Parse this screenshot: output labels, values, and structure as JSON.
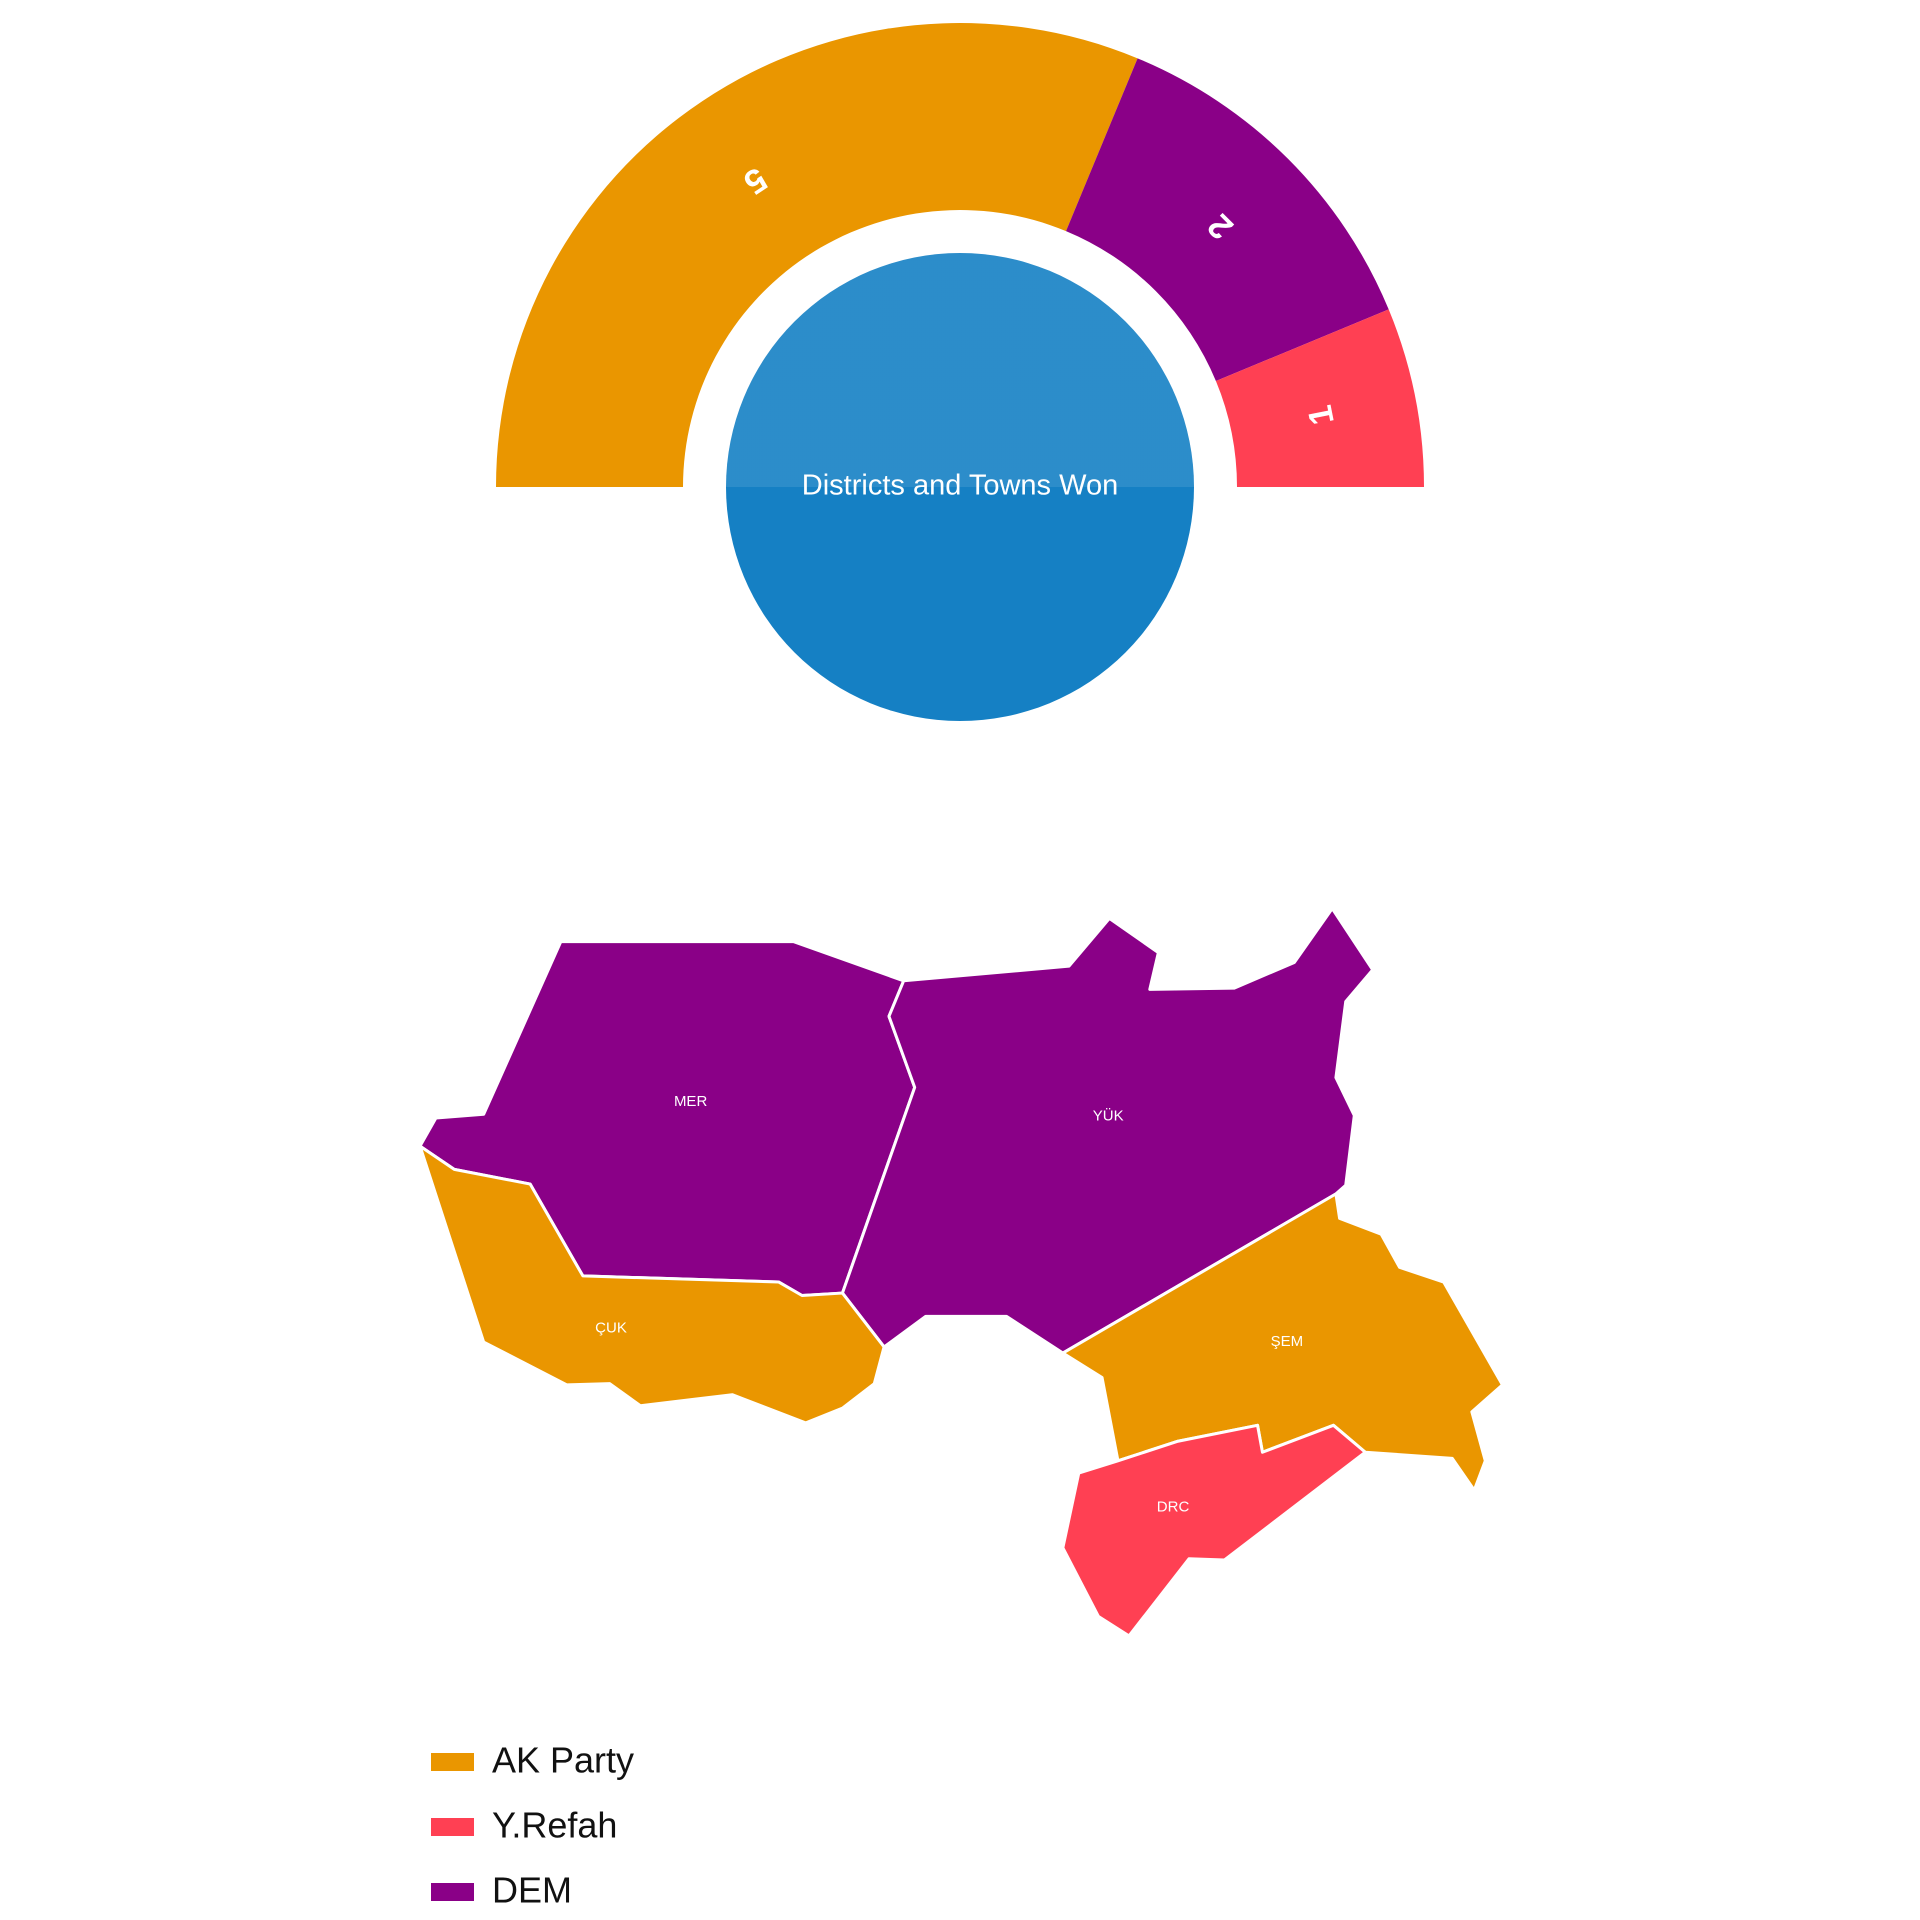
{
  "chart_data": {
    "type": "pie",
    "title": "Districts and Towns Won",
    "values": [
      5,
      2,
      1
    ],
    "colors": [
      "#ea9600",
      "#8a0087",
      "#ff4053"
    ],
    "center_color": "#1580c4"
  },
  "map": {
    "regions": [
      {
        "label": "MER",
        "color": "#8a0087"
      },
      {
        "label": "YÜK",
        "color": "#8a0087"
      },
      {
        "label": "ÇUK",
        "color": "#ea9600"
      },
      {
        "label": "ŞEM",
        "color": "#ea9600"
      },
      {
        "label": "DRC",
        "color": "#ff4053"
      }
    ]
  },
  "legend": {
    "items": [
      {
        "name": "AK Party",
        "color": "#ea9600"
      },
      {
        "name": "Y.Refah",
        "color": "#ff4053"
      },
      {
        "name": "DEM",
        "color": "#8a0087"
      }
    ]
  }
}
